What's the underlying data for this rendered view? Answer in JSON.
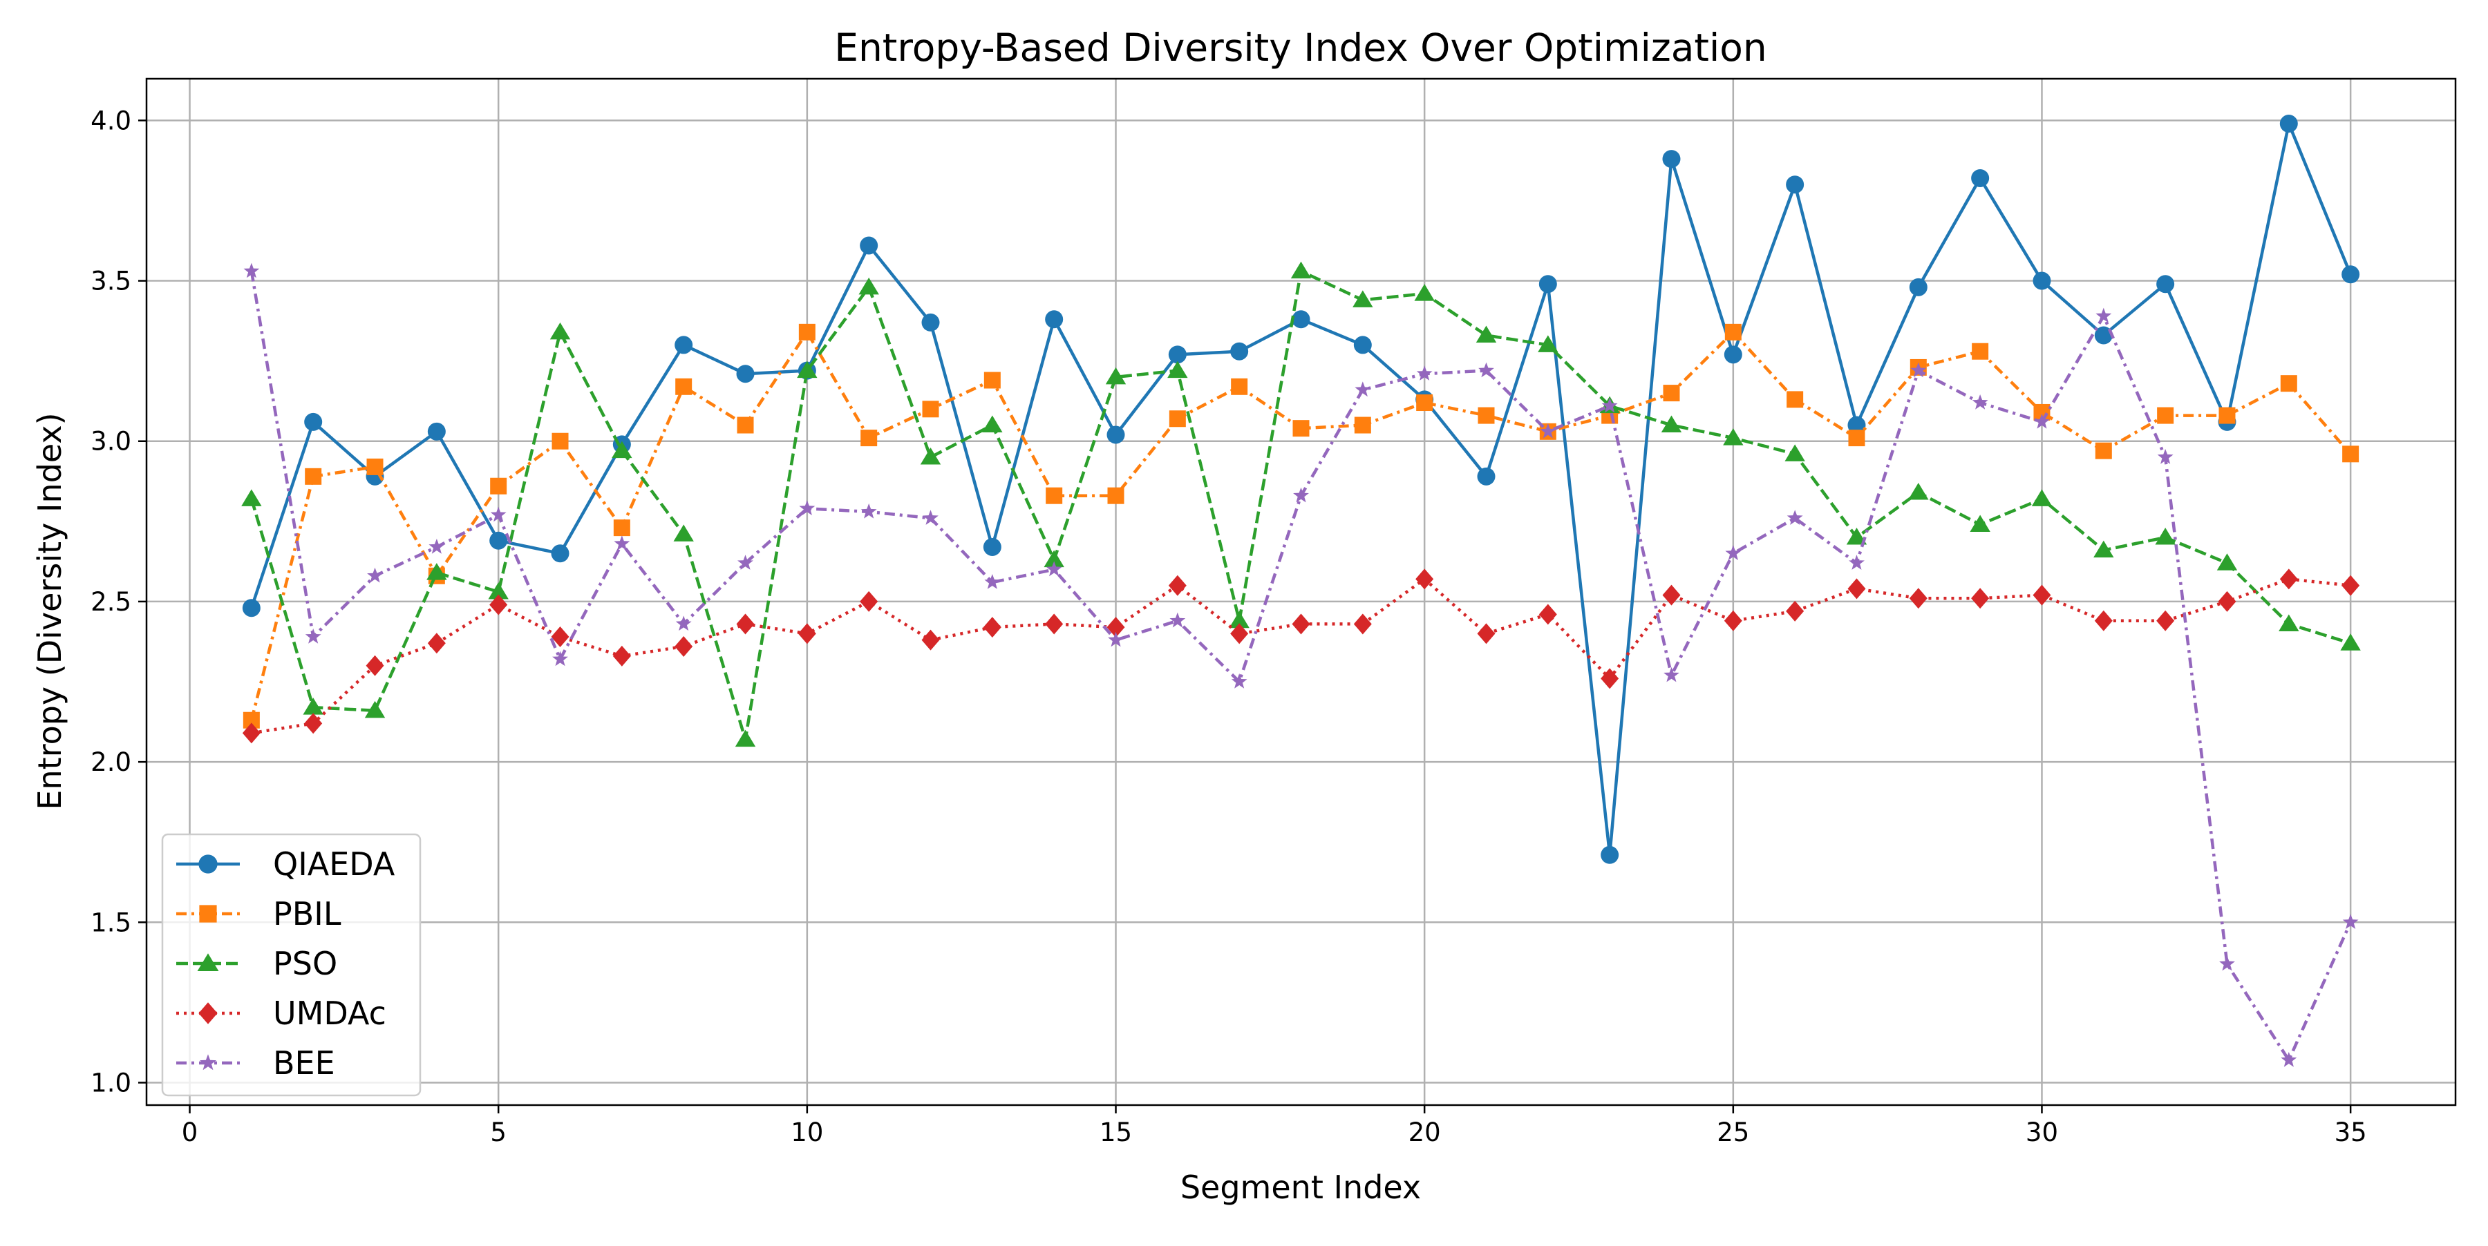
{
  "chart_data": {
    "type": "line",
    "title": "Entropy-Based Diversity Index Over Optimization",
    "xlabel": "Segment Index",
    "ylabel": "Entropy (Diversity Index)",
    "xlim": [
      -0.7,
      36.7
    ],
    "ylim": [
      0.93,
      4.13
    ],
    "xticks": [
      0,
      5,
      10,
      15,
      20,
      25,
      30,
      35
    ],
    "yticks": [
      1.0,
      1.5,
      2.0,
      2.5,
      3.0,
      3.5,
      4.0
    ],
    "xtick_labels": [
      "0",
      "5",
      "10",
      "15",
      "20",
      "25",
      "30",
      "35"
    ],
    "ytick_labels": [
      "1.0",
      "1.5",
      "2.0",
      "2.5",
      "3.0",
      "3.5",
      "4.0"
    ],
    "grid": true,
    "legend_position": "lower-left",
    "x": [
      1,
      2,
      3,
      4,
      5,
      6,
      7,
      8,
      9,
      10,
      11,
      12,
      13,
      14,
      15,
      16,
      17,
      18,
      19,
      20,
      21,
      22,
      23,
      24,
      25,
      26,
      27,
      28,
      29,
      30,
      31,
      32,
      33,
      34,
      35
    ],
    "series": [
      {
        "name": "QIAEDA",
        "color": "#1f77b4",
        "marker": "circle",
        "line_style": "solid",
        "values": [
          2.48,
          3.06,
          2.89,
          3.03,
          2.69,
          2.65,
          2.99,
          3.3,
          3.21,
          3.22,
          3.61,
          3.37,
          2.67,
          3.38,
          3.02,
          3.27,
          3.28,
          3.38,
          3.3,
          3.13,
          2.89,
          3.49,
          1.71,
          3.88,
          3.27,
          3.8,
          3.05,
          3.48,
          3.82,
          3.5,
          3.33,
          3.49,
          3.06,
          3.99,
          3.52
        ]
      },
      {
        "name": "PBIL",
        "color": "#ff7f0e",
        "marker": "square",
        "line_style": "dashdot",
        "values": [
          2.13,
          2.89,
          2.92,
          2.58,
          2.86,
          3.0,
          2.73,
          3.17,
          3.05,
          3.34,
          3.01,
          3.1,
          3.19,
          2.83,
          2.83,
          3.07,
          3.17,
          3.04,
          3.05,
          3.12,
          3.08,
          3.03,
          3.08,
          3.15,
          3.34,
          3.13,
          3.01,
          3.23,
          3.28,
          3.09,
          2.97,
          3.08,
          3.08,
          3.18,
          2.96
        ]
      },
      {
        "name": "PSO",
        "color": "#2ca02c",
        "marker": "triangle",
        "line_style": "dashed",
        "values": [
          2.82,
          2.17,
          2.16,
          2.59,
          2.53,
          3.34,
          2.97,
          2.71,
          2.07,
          3.22,
          3.48,
          2.95,
          3.05,
          2.63,
          3.2,
          3.22,
          2.44,
          3.53,
          3.44,
          3.46,
          3.33,
          3.3,
          3.11,
          3.05,
          3.01,
          2.96,
          2.7,
          2.84,
          2.74,
          2.82,
          2.66,
          2.7,
          2.62,
          2.43,
          2.37
        ]
      },
      {
        "name": "UMDAc",
        "color": "#d62728",
        "marker": "diamond",
        "line_style": "dotted",
        "values": [
          2.09,
          2.12,
          2.3,
          2.37,
          2.49,
          2.39,
          2.33,
          2.36,
          2.43,
          2.4,
          2.5,
          2.38,
          2.42,
          2.43,
          2.42,
          2.55,
          2.4,
          2.43,
          2.43,
          2.57,
          2.4,
          2.46,
          2.26,
          2.52,
          2.44,
          2.47,
          2.54,
          2.51,
          2.51,
          2.52,
          2.44,
          2.44,
          2.5,
          2.57,
          2.55
        ]
      },
      {
        "name": "BEE",
        "color": "#9467bd",
        "marker": "star",
        "line_style": "dashdot",
        "values": [
          3.53,
          2.39,
          2.58,
          2.67,
          2.77,
          2.32,
          2.68,
          2.43,
          2.62,
          2.79,
          2.78,
          2.76,
          2.56,
          2.6,
          2.38,
          2.44,
          2.25,
          2.83,
          3.16,
          3.21,
          3.22,
          3.03,
          3.11,
          2.27,
          2.65,
          2.76,
          2.62,
          3.22,
          3.12,
          3.06,
          3.39,
          2.95,
          1.37,
          1.07,
          1.5
        ]
      }
    ]
  }
}
